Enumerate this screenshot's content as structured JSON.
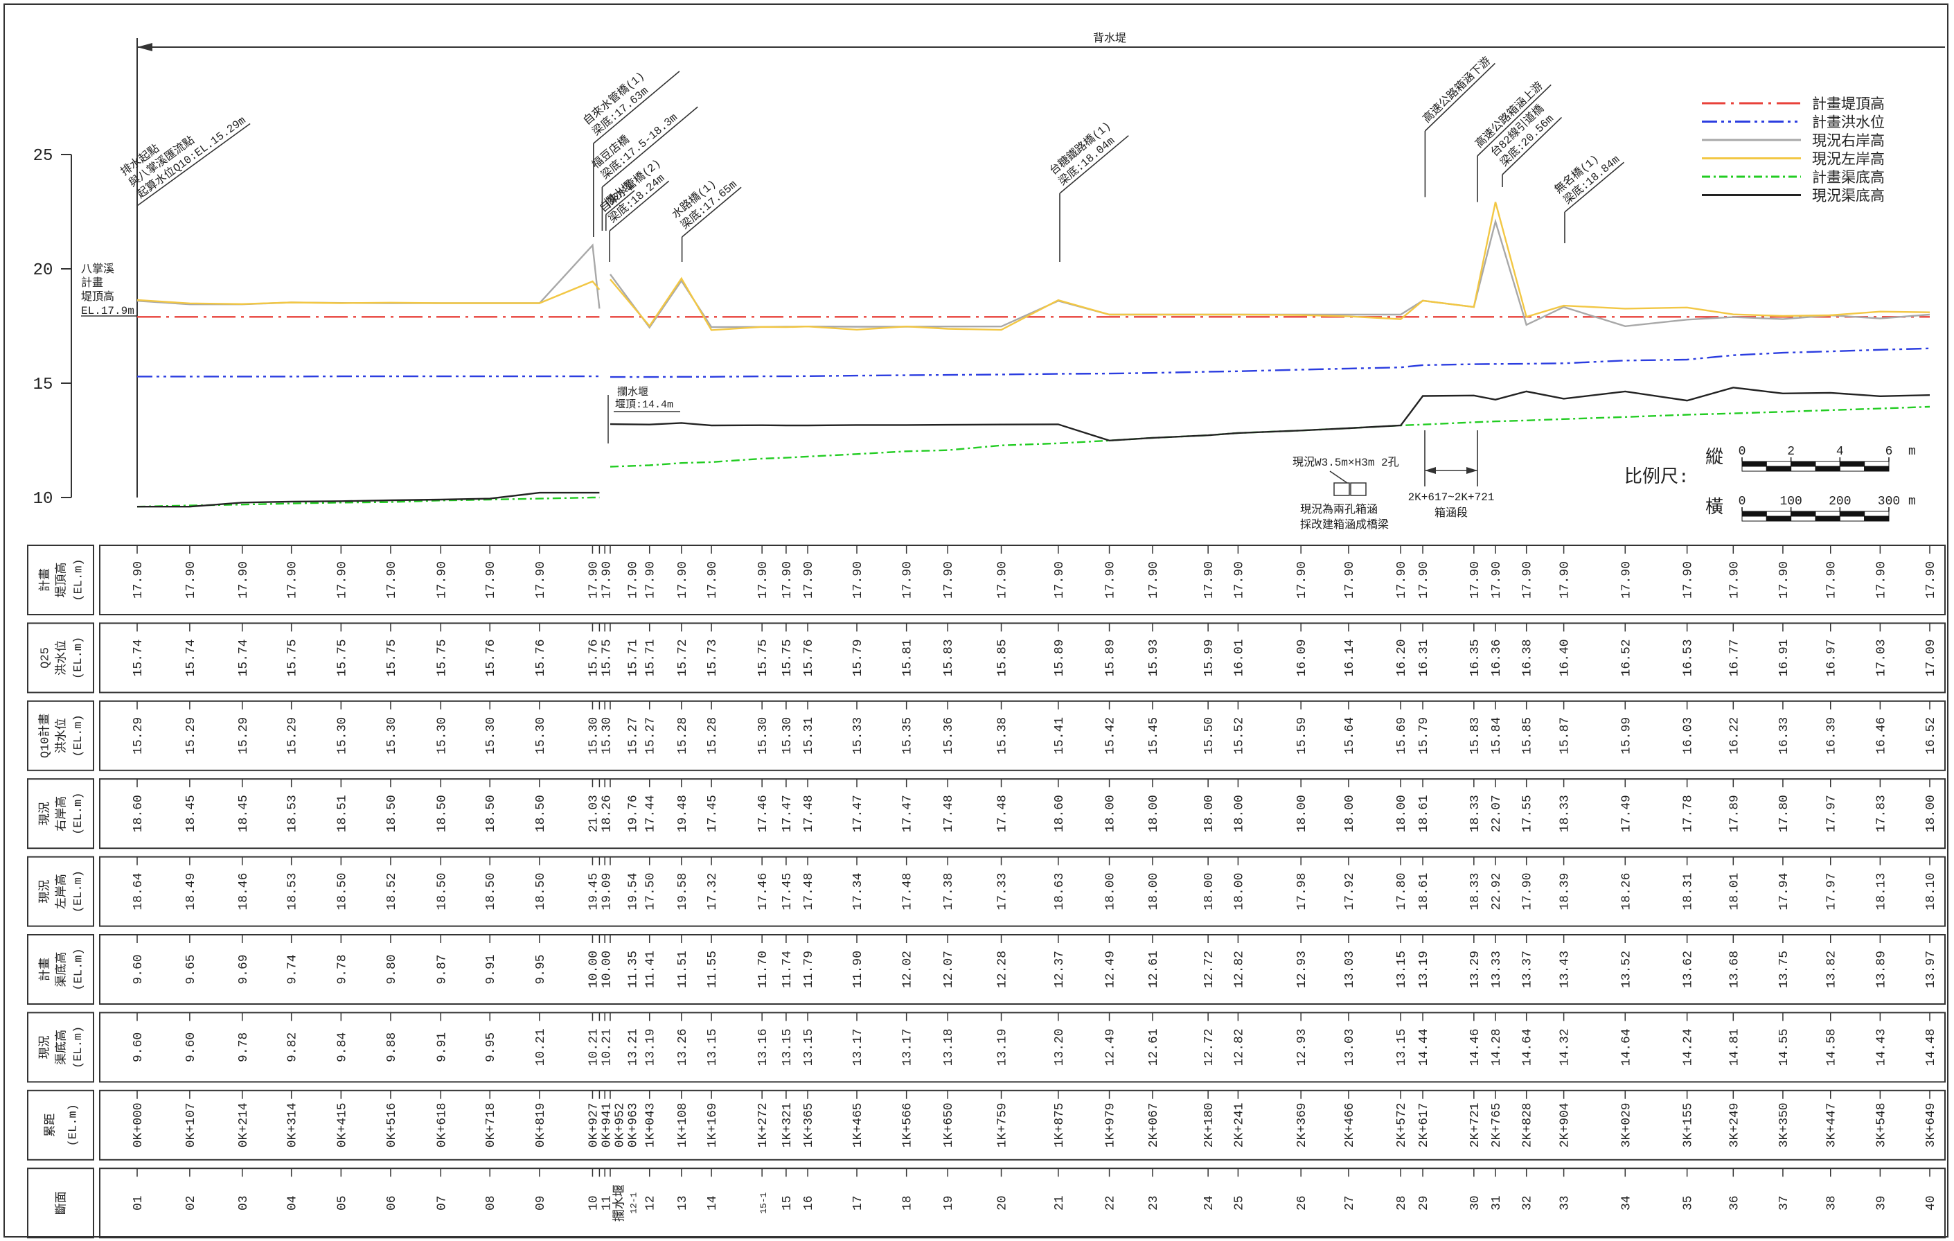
{
  "chart_data": {
    "type": "line",
    "legend": "upper right",
    "ylim": [
      10,
      25
    ],
    "yticks": [
      10,
      15,
      20,
      25
    ],
    "xlim": [
      0,
      3649
    ],
    "x": [
      0,
      107,
      214,
      314,
      415,
      516,
      618,
      718,
      819,
      927,
      941,
      952,
      963,
      1043,
      1108,
      1169,
      1272,
      1321,
      1365,
      1465,
      1566,
      1650,
      1759,
      1875,
      1979,
      2067,
      2180,
      2241,
      2369,
      2466,
      2572,
      2617,
      2721,
      2765,
      2828,
      2904,
      3029,
      3155,
      3249,
      3350,
      3447,
      3548,
      3649
    ],
    "xticks": [
      {
        "value": 0,
        "label": "0K+000"
      },
      {
        "value": 107,
        "label": "0K+107"
      },
      {
        "value": 214,
        "label": "0K+214"
      },
      {
        "value": 314,
        "label": "0K+314"
      },
      {
        "value": 415,
        "label": "0K+415"
      },
      {
        "value": 516,
        "label": "0K+516"
      },
      {
        "value": 618,
        "label": "0K+618"
      },
      {
        "value": 718,
        "label": "0K+718"
      },
      {
        "value": 819,
        "label": "0K+819"
      },
      {
        "value": 927,
        "label": "0K+927"
      },
      {
        "value": 941,
        "label": "0K+941"
      },
      {
        "value": 952,
        "label": "0K+952"
      },
      {
        "value": 963,
        "label": "0K+963"
      },
      {
        "value": 1043,
        "label": "1K+043"
      },
      {
        "value": 1108,
        "label": "1K+108"
      },
      {
        "value": 1169,
        "label": "1K+169"
      },
      {
        "value": 1272,
        "label": "1K+272"
      },
      {
        "value": 1321,
        "label": "1K+321"
      },
      {
        "value": 1365,
        "label": "1K+365"
      },
      {
        "value": 1465,
        "label": "1K+465"
      },
      {
        "value": 1566,
        "label": "1K+566"
      },
      {
        "value": 1650,
        "label": "1K+650"
      },
      {
        "value": 1759,
        "label": "1K+759"
      },
      {
        "value": 1875,
        "label": "1K+875"
      },
      {
        "value": 1979,
        "label": "1K+979"
      },
      {
        "value": 2067,
        "label": "2K+067"
      },
      {
        "value": 2180,
        "label": "2K+180"
      },
      {
        "value": 2241,
        "label": "2K+241"
      },
      {
        "value": 2369,
        "label": "2K+369"
      },
      {
        "value": 2466,
        "label": "2K+466"
      },
      {
        "value": 2572,
        "label": "2K+572"
      },
      {
        "value": 2617,
        "label": "2K+617"
      },
      {
        "value": 2721,
        "label": "2K+721"
      },
      {
        "value": 2765,
        "label": "2K+765"
      },
      {
        "value": 2828,
        "label": "2K+828"
      },
      {
        "value": 2904,
        "label": "2K+904"
      },
      {
        "value": 3029,
        "label": "3K+029"
      },
      {
        "value": 3155,
        "label": "3K+155"
      },
      {
        "value": 3249,
        "label": "3K+249"
      },
      {
        "value": 3350,
        "label": "3K+350"
      },
      {
        "value": 3447,
        "label": "3K+447"
      },
      {
        "value": 3548,
        "label": "3K+548"
      },
      {
        "value": 3649,
        "label": "3K+649"
      }
    ],
    "series": [
      {
        "name": "計畫堤頂高",
        "color": "#e8413a",
        "style": "dashdot",
        "values": [
          17.9,
          17.9,
          17.9,
          17.9,
          17.9,
          17.9,
          17.9,
          17.9,
          17.9,
          17.9,
          17.9,
          null,
          17.9,
          17.9,
          17.9,
          17.9,
          17.9,
          17.9,
          17.9,
          17.9,
          17.9,
          17.9,
          17.9,
          17.9,
          17.9,
          17.9,
          17.9,
          17.9,
          17.9,
          17.9,
          17.9,
          17.9,
          17.9,
          17.9,
          17.9,
          17.9,
          17.9,
          17.9,
          17.9,
          17.9,
          17.9,
          17.9,
          17.9
        ],
        "value_labels": [
          "17.90",
          "17.90",
          "17.90",
          "17.90",
          "17.90",
          "17.90",
          "17.90",
          "17.90",
          "17.90",
          "17.90",
          "17.90",
          null,
          "17.90",
          "17.90",
          "17.90",
          "17.90",
          "17.90",
          "17.90",
          "17.90",
          "17.90",
          "17.90",
          "17.90",
          "17.90",
          "17.90",
          "17.90",
          "17.90",
          "17.90",
          "17.90",
          "17.90",
          "17.90",
          "17.90",
          "17.90",
          "17.90",
          "17.90",
          "17.90",
          "17.90",
          "17.90",
          "17.90",
          "17.90",
          "17.90",
          "17.90",
          "17.90",
          "17.90"
        ]
      },
      {
        "name": "計畫洪水位",
        "color": "#2b3de0",
        "style": "dashdotdot",
        "values": [
          15.29,
          15.29,
          15.29,
          15.29,
          15.3,
          15.3,
          15.3,
          15.3,
          15.3,
          15.3,
          15.3,
          null,
          15.27,
          15.27,
          15.28,
          15.28,
          15.3,
          15.3,
          15.31,
          15.33,
          15.35,
          15.36,
          15.38,
          15.41,
          15.42,
          15.45,
          15.5,
          15.52,
          15.59,
          15.64,
          15.69,
          15.79,
          15.83,
          15.84,
          15.85,
          15.87,
          15.99,
          16.03,
          16.22,
          16.33,
          16.39,
          16.46,
          16.52
        ],
        "value_labels": [
          "15.29",
          "15.29",
          "15.29",
          "15.29",
          "15.30",
          "15.30",
          "15.30",
          "15.30",
          "15.30",
          "15.30",
          "15.30",
          null,
          "15.27",
          "15.27",
          "15.28",
          "15.28",
          "15.30",
          "15.30",
          "15.31",
          "15.33",
          "15.35",
          "15.36",
          "15.38",
          "15.41",
          "15.42",
          "15.45",
          "15.50",
          "15.52",
          "15.59",
          "15.64",
          "15.69",
          "15.79",
          "15.83",
          "15.84",
          "15.85",
          "15.87",
          "15.99",
          "16.03",
          "16.22",
          "16.33",
          "16.39",
          "16.46",
          "16.52"
        ]
      },
      {
        "name": "現況右岸高",
        "color": "#a8a8a8",
        "style": "solid",
        "values": [
          18.6,
          18.45,
          18.45,
          18.53,
          18.51,
          18.5,
          18.5,
          18.5,
          18.5,
          21.03,
          18.26,
          null,
          19.76,
          17.44,
          19.48,
          17.45,
          17.46,
          17.47,
          17.48,
          17.47,
          17.47,
          17.48,
          17.48,
          18.6,
          18,
          18,
          18,
          18,
          18,
          18,
          18,
          18.61,
          18.33,
          22.07,
          17.55,
          18.33,
          17.49,
          17.78,
          17.89,
          17.8,
          17.97,
          17.83,
          18
        ],
        "value_labels": [
          "18.60",
          "18.45",
          "18.45",
          "18.53",
          "18.51",
          "18.50",
          "18.50",
          "18.50",
          "18.50",
          "21.03",
          "18.26",
          null,
          "19.76",
          "17.44",
          "19.48",
          "17.45",
          "17.46",
          "17.47",
          "17.48",
          "17.47",
          "17.47",
          "17.48",
          "17.48",
          "18.60",
          "18.00",
          "18.00",
          "18.00",
          "18.00",
          "18.00",
          "18.00",
          "18.00",
          "18.61",
          "18.33",
          "22.07",
          "17.55",
          "18.33",
          "17.49",
          "17.78",
          "17.89",
          "17.80",
          "17.97",
          "17.83",
          "18.00"
        ]
      },
      {
        "name": "現況左岸高",
        "color": "#f2c744",
        "style": "solid",
        "values": [
          18.64,
          18.49,
          18.46,
          18.53,
          18.5,
          18.52,
          18.5,
          18.5,
          18.5,
          19.45,
          19.09,
          null,
          19.54,
          17.5,
          19.58,
          17.32,
          17.46,
          17.45,
          17.48,
          17.34,
          17.48,
          17.38,
          17.33,
          18.63,
          18,
          18,
          18,
          18,
          17.98,
          17.92,
          17.8,
          18.61,
          18.33,
          22.92,
          17.9,
          18.39,
          18.26,
          18.31,
          18.01,
          17.94,
          17.97,
          18.13,
          18.1
        ],
        "value_labels": [
          "18.64",
          "18.49",
          "18.46",
          "18.53",
          "18.50",
          "18.52",
          "18.50",
          "18.50",
          "18.50",
          "19.45",
          "19.09",
          null,
          "19.54",
          "17.50",
          "19.58",
          "17.32",
          "17.46",
          "17.45",
          "17.48",
          "17.34",
          "17.48",
          "17.38",
          "17.33",
          "18.63",
          "18.00",
          "18.00",
          "18.00",
          "18.00",
          "17.98",
          "17.92",
          "17.80",
          "18.61",
          "18.33",
          "22.92",
          "17.90",
          "18.39",
          "18.26",
          "18.31",
          "18.01",
          "17.94",
          "17.97",
          "18.13",
          "18.10"
        ]
      },
      {
        "name": "計畫渠底高",
        "color": "#22cc22",
        "style": "dashed",
        "values": [
          9.6,
          9.65,
          9.69,
          9.74,
          9.78,
          9.8,
          9.87,
          9.91,
          9.95,
          10,
          10,
          null,
          11.35,
          11.41,
          11.51,
          11.55,
          11.7,
          11.74,
          11.79,
          11.9,
          12.02,
          12.07,
          12.28,
          12.37,
          12.49,
          12.61,
          12.72,
          12.82,
          12.93,
          13.03,
          13.15,
          13.19,
          13.29,
          13.33,
          13.37,
          13.43,
          13.52,
          13.62,
          13.68,
          13.75,
          13.82,
          13.89,
          13.97
        ],
        "value_labels": [
          "9.60",
          "9.65",
          "9.69",
          "9.74",
          "9.78",
          "9.80",
          "9.87",
          "9.91",
          "9.95",
          "10.00",
          "10.00",
          null,
          "11.35",
          "11.41",
          "11.51",
          "11.55",
          "11.70",
          "11.74",
          "11.79",
          "11.90",
          "12.02",
          "12.07",
          "12.28",
          "12.37",
          "12.49",
          "12.61",
          "12.72",
          "12.82",
          "12.93",
          "13.03",
          "13.15",
          "13.19",
          "13.29",
          "13.33",
          "13.37",
          "13.43",
          "13.52",
          "13.62",
          "13.68",
          "13.75",
          "13.82",
          "13.89",
          "13.97"
        ]
      },
      {
        "name": "現況渠底高",
        "color": "#222222",
        "style": "solid",
        "values": [
          9.6,
          9.6,
          9.78,
          9.82,
          9.84,
          9.88,
          9.91,
          9.95,
          10.21,
          10.21,
          10.21,
          null,
          13.21,
          13.19,
          13.26,
          13.15,
          13.16,
          13.15,
          13.15,
          13.17,
          13.17,
          13.18,
          13.19,
          13.2,
          12.49,
          12.61,
          12.72,
          12.82,
          12.93,
          13.03,
          13.15,
          14.44,
          14.46,
          14.28,
          14.64,
          14.32,
          14.64,
          14.24,
          14.81,
          14.55,
          14.58,
          14.43,
          14.48
        ],
        "value_labels": [
          "9.60",
          "9.60",
          "9.78",
          "9.82",
          "9.84",
          "9.88",
          "9.91",
          "9.95",
          "10.21",
          "10.21",
          "10.21",
          null,
          "13.21",
          "13.19",
          "13.26",
          "13.15",
          "13.16",
          "13.15",
          "13.15",
          "13.17",
          "13.17",
          "13.18",
          "13.19",
          "13.20",
          "12.49",
          "12.61",
          "12.72",
          "12.82",
          "12.93",
          "13.03",
          "13.15",
          "14.44",
          "14.46",
          "14.28",
          "14.64",
          "14.32",
          "14.64",
          "14.24",
          "14.81",
          "14.55",
          "14.58",
          "14.43",
          "14.48"
        ]
      }
    ],
    "backwater": "背水堤",
    "levee_note": [
      "八掌溪",
      "計畫",
      "堤頂高",
      "EL.17.9m"
    ],
    "annotations": [
      {
        "lines": [
          "排水起點",
          "與八掌溪匯流點",
          "起算水位Q10:EL.15.29m"
        ]
      },
      {
        "lines": [
          "自來水管橋(1)",
          "梁底:17.63m"
        ]
      },
      {
        "lines": [
          "福豆店橋",
          "梁底:17.5-18.3m"
        ]
      },
      {
        "lines": [
          "攔水堰"
        ]
      },
      {
        "lines": [
          "自來水管橋(2)",
          "梁底:18.24m"
        ]
      },
      {
        "lines": [
          "水路橋(1)",
          "梁底:17.65m"
        ]
      },
      {
        "lines": [
          "台糖鐵路橋(1)",
          "梁底:18.04m"
        ]
      },
      {
        "lines": [
          "高速公路箱涵下游"
        ]
      },
      {
        "lines": [
          "高速公路箱涵上游"
        ]
      },
      {
        "lines": [
          "台82線引道橋",
          "梁底:20.56m"
        ]
      },
      {
        "lines": [
          "無名橋(1)",
          "梁底:18.84m"
        ]
      }
    ],
    "weir_note": [
      "攔水堰",
      "堰頂:14.4m"
    ],
    "culvert_note": [
      "現況W3.5m×H3m 2孔",
      "現況為兩孔箱涵",
      "採改建箱涵成橋梁"
    ],
    "culvert_span": [
      "2K+617~2K+721",
      "箱涵段"
    ],
    "scale": {
      "title": "比例尺:",
      "bars": [
        {
          "label": "縱",
          "ticks": [
            0,
            2,
            4,
            6
          ],
          "unit": "m"
        },
        {
          "label": "橫",
          "ticks": [
            0,
            100,
            200,
            300
          ],
          "unit": "m"
        }
      ]
    }
  },
  "table": {
    "labels": [
      [
        "計畫",
        "堤頂高",
        "(EL.m)"
      ],
      [
        "Q25",
        "洪水位",
        "(EL.m)"
      ],
      [
        "Q10計畫",
        "洪水位",
        "(EL.m)"
      ],
      [
        "現況",
        "右岸高",
        "(EL.m)"
      ],
      [
        "現況",
        "左岸高",
        "(EL.m)"
      ],
      [
        "計畫",
        "渠底高",
        "(EL.m)"
      ],
      [
        "現況",
        "渠底高",
        "(EL.m)"
      ],
      [
        "累距",
        "(EL.m)"
      ],
      [
        "斷面"
      ]
    ],
    "q25": [
      "15.74",
      "15.74",
      "15.74",
      "15.75",
      "15.75",
      "15.75",
      "15.75",
      "15.76",
      "15.76",
      "15.76",
      "15.75",
      null,
      "15.71",
      "15.71",
      "15.72",
      "15.73",
      "15.75",
      "15.75",
      "15.76",
      "15.79",
      "15.81",
      "15.83",
      "15.85",
      "15.89",
      "15.89",
      "15.93",
      "15.99",
      "16.01",
      "16.09",
      "16.14",
      "16.20",
      "16.31",
      "16.35",
      "16.36",
      "16.38",
      "16.40",
      "16.52",
      "16.53",
      "16.77",
      "16.91",
      "16.97",
      "17.03",
      "17.09"
    ],
    "sections": [
      "01",
      "02",
      "03",
      "04",
      "05",
      "06",
      "07",
      "08",
      "09",
      "10",
      "11",
      "攔水堰",
      "12-1",
      "12",
      "13",
      "14",
      "15-1",
      "15",
      "16",
      "17",
      "18",
      "19",
      "20",
      "21",
      "22",
      "23",
      "24",
      "25",
      "26",
      "27",
      "28",
      "29",
      "30",
      "31",
      "32",
      "33",
      "34",
      "35",
      "36",
      "37",
      "38",
      "39",
      "40"
    ]
  }
}
